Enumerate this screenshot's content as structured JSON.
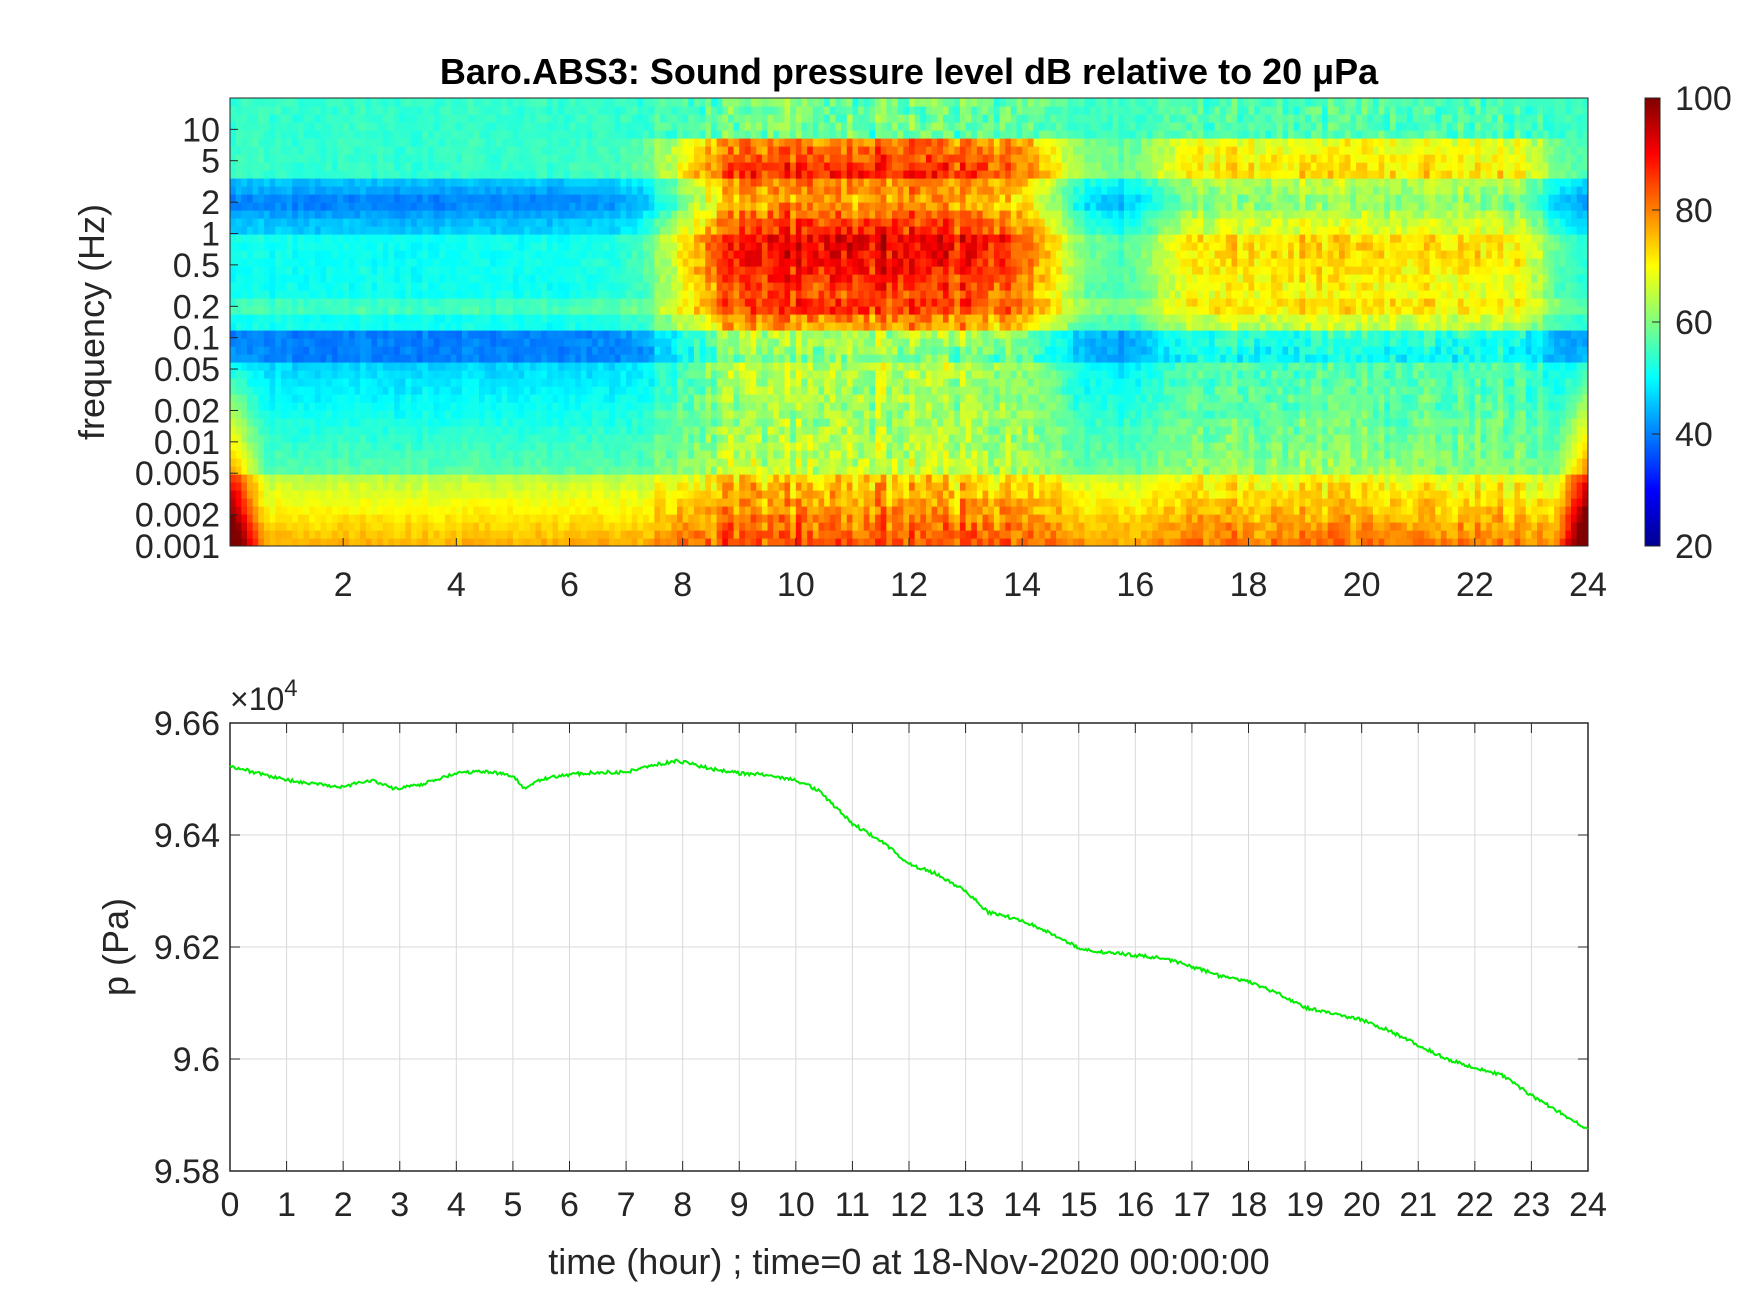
{
  "chart_data": [
    {
      "type": "heatmap",
      "title": "Baro.ABS3: Sound pressure level dB relative to 20 μPa",
      "xlabel": "",
      "ylabel": "frequency (Hz)",
      "x_range": [
        0,
        24
      ],
      "x_ticks": [
        "2",
        "4",
        "6",
        "8",
        "10",
        "12",
        "14",
        "16",
        "18",
        "20",
        "22",
        "24"
      ],
      "y_scale": "log",
      "y_range": [
        0.001,
        20
      ],
      "y_ticks": [
        "0.001",
        "0.002",
        "0.005",
        "0.01",
        "0.02",
        "0.05",
        "0.1",
        "0.2",
        "0.5",
        "1",
        "2",
        "5",
        "10"
      ],
      "colorbar": {
        "range": [
          20,
          100
        ],
        "ticks": [
          "20",
          "40",
          "60",
          "80",
          "100"
        ],
        "colormap": "jet"
      },
      "description_values": {
        "quiet_period_hours": [
          0,
          7.5
        ],
        "active_period_hours": [
          8,
          14.5
        ],
        "secondary_active_hours": [
          18.5,
          23
        ],
        "persistent_band_hz": 0.2
      }
    },
    {
      "type": "line",
      "title": "",
      "xlabel": "time (hour) ; time=0 at 18-Nov-2020 00:00:00",
      "ylabel": "p (Pa)",
      "y_exponent_label": "×10",
      "y_exponent_power": "4",
      "x_ticks": [
        "0",
        "1",
        "2",
        "3",
        "4",
        "5",
        "6",
        "7",
        "8",
        "9",
        "10",
        "11",
        "12",
        "13",
        "14",
        "15",
        "16",
        "17",
        "18",
        "19",
        "20",
        "21",
        "22",
        "23",
        "24"
      ],
      "y_ticks": [
        "9.58",
        "9.6",
        "9.62",
        "9.64",
        "9.66"
      ],
      "xlim": [
        0,
        24
      ],
      "ylim": [
        9.58,
        9.66
      ],
      "grid": true,
      "series": [
        {
          "color": "#00ee00",
          "x": [
            0,
            0.5,
            1,
            1.5,
            1.9,
            2.5,
            2.9,
            3.3,
            4,
            4.5,
            5,
            5.2,
            5.5,
            6,
            6.5,
            7,
            7.5,
            7.9,
            8.5,
            9,
            9.5,
            10,
            10.4,
            11,
            11.5,
            12,
            12.5,
            13,
            13.4,
            14,
            14.5,
            15,
            15.5,
            16,
            16.5,
            17,
            17.5,
            18,
            18.5,
            19,
            19.5,
            20,
            20.5,
            21,
            21.5,
            22,
            22.5,
            23,
            23.5,
            24
          ],
          "y": [
            9.6523,
            9.651,
            9.6498,
            9.6492,
            9.6485,
            9.6498,
            9.6482,
            9.6488,
            9.651,
            9.6514,
            9.6506,
            9.6484,
            9.65,
            9.6508,
            9.6512,
            9.6512,
            9.6525,
            9.6533,
            9.6518,
            9.651,
            9.6508,
            9.6498,
            9.648,
            9.642,
            9.639,
            9.6348,
            9.633,
            9.63,
            9.6262,
            9.6248,
            9.6225,
            9.6198,
            9.619,
            9.6185,
            9.618,
            9.6165,
            9.6148,
            9.6138,
            9.6118,
            9.6092,
            9.608,
            9.607,
            9.605,
            9.6025,
            9.6,
            9.5985,
            9.597,
            9.5935,
            9.5905,
            9.5875
          ]
        }
      ]
    }
  ]
}
